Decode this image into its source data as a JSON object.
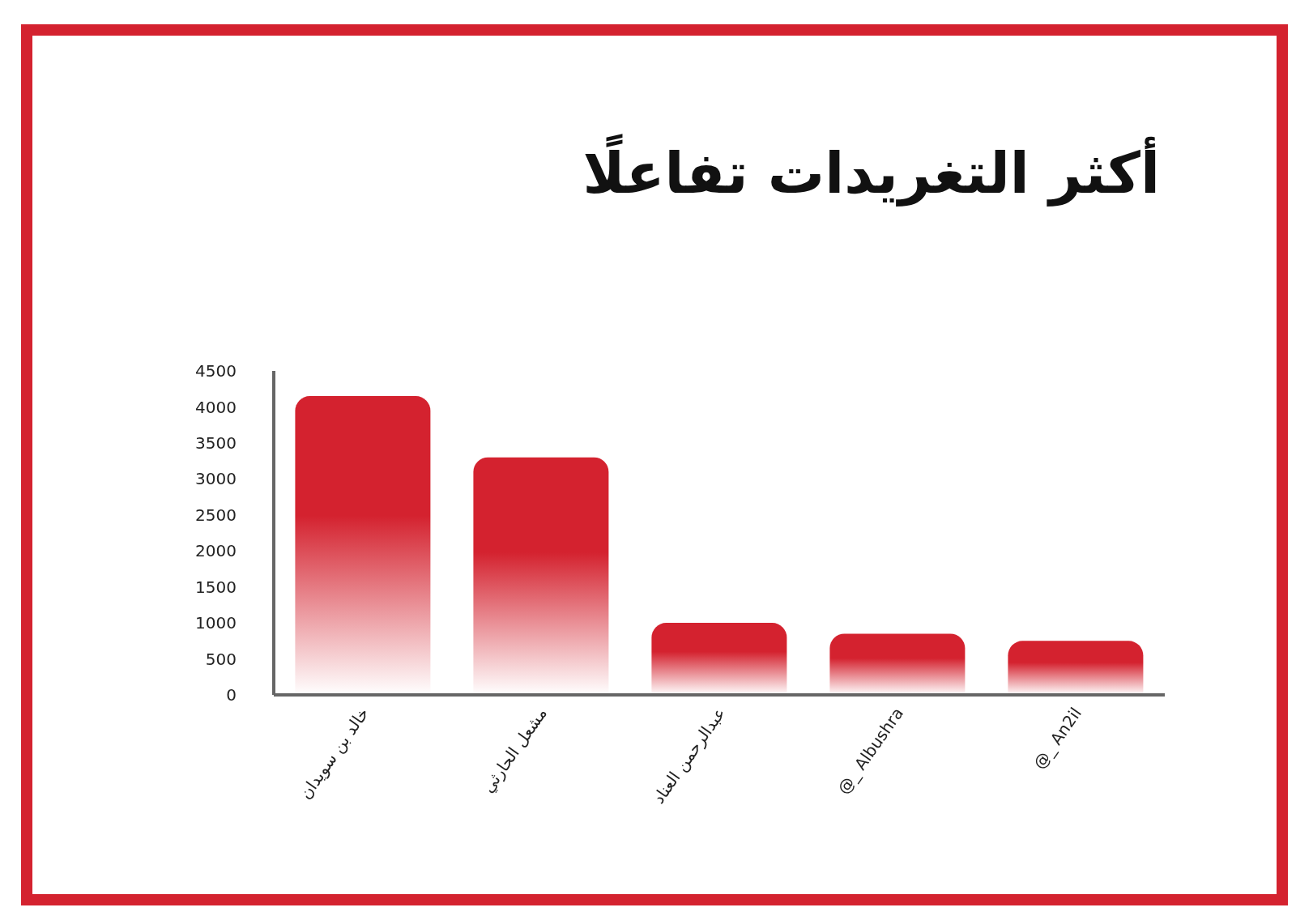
{
  "chart_data": {
    "type": "bar",
    "title": "أكثر التغريدات تفاعلًا",
    "categories": [
      "خالد بن سويدان",
      "مشعل الحارثي",
      "عبدالرحمن العناد",
      "@_ Albushra",
      "@_ An2il"
    ],
    "values": [
      4150,
      3300,
      1000,
      850,
      750
    ],
    "color": "#d4222f",
    "ylim": [
      0,
      4500
    ],
    "yticks": [
      0,
      500,
      1000,
      1500,
      2000,
      2500,
      3000,
      3500,
      4000,
      4500
    ],
    "grid": false,
    "legend": false
  }
}
